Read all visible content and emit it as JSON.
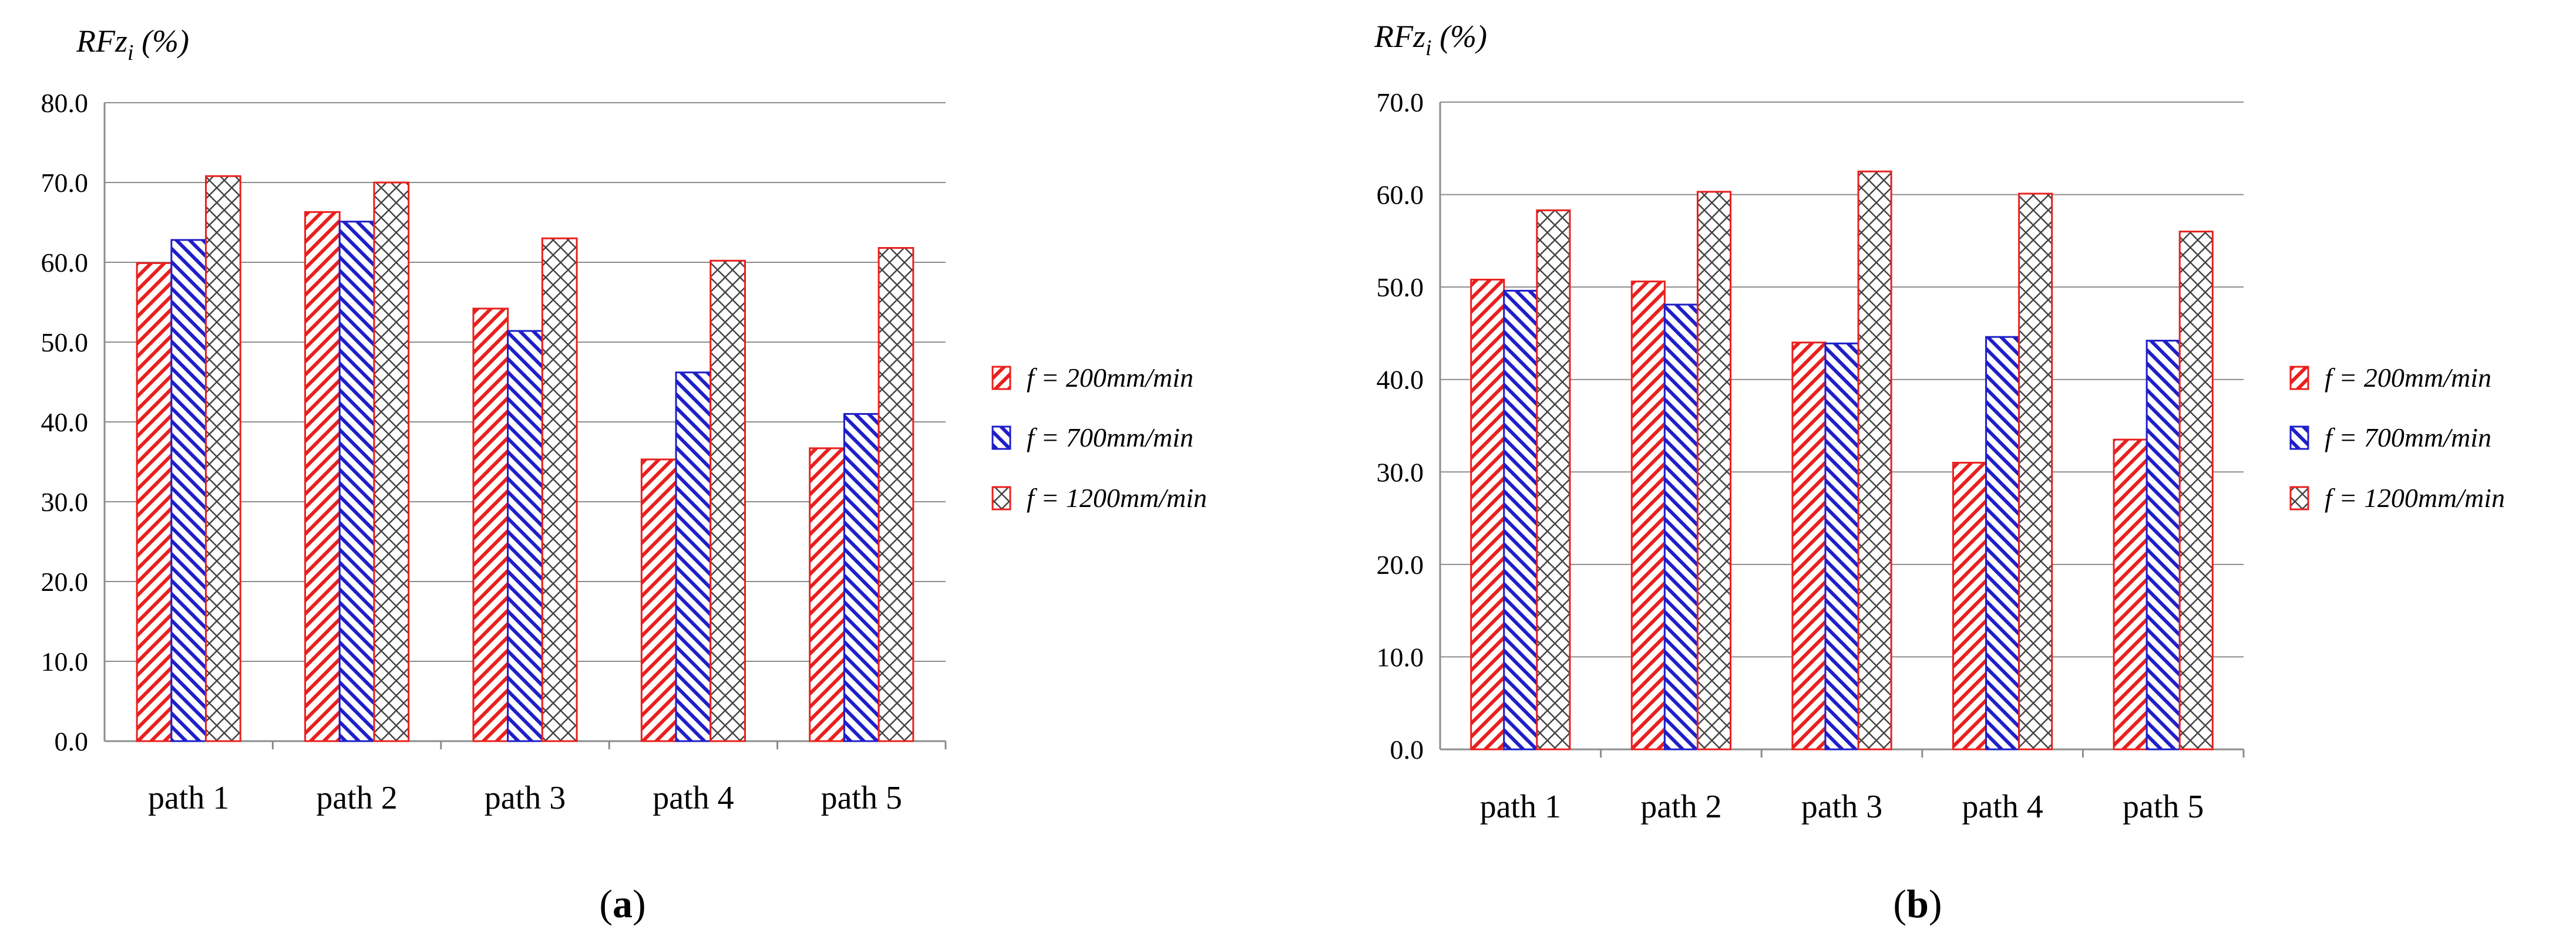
{
  "chart_data": [
    {
      "type": "bar",
      "panel_label": "a",
      "ylabel_main": "RFz",
      "ylabel_sub": "i",
      "ylabel_unit": " (%)",
      "categories": [
        "path 1",
        "path 2",
        "path 3",
        "path 4",
        "path 5"
      ],
      "ylim": [
        0,
        80
      ],
      "ytick_step": 10,
      "ytick_labels": [
        "0.0",
        "10.0",
        "20.0",
        "30.0",
        "40.0",
        "50.0",
        "60.0",
        "70.0",
        "80.0"
      ],
      "grid": true,
      "legend_position": "right",
      "series": [
        {
          "name": "f = 200mm/min",
          "values": [
            59.9,
            66.3,
            54.2,
            35.3,
            36.7
          ],
          "color": "#e8201e",
          "pattern": "diag-up"
        },
        {
          "name": "f = 700mm/min",
          "values": [
            62.8,
            65.1,
            51.4,
            46.2,
            41.0
          ],
          "color": "#1f1fc8",
          "pattern": "diag-down"
        },
        {
          "name": "f = 1200mm/min",
          "values": [
            70.8,
            70.0,
            63.0,
            60.2,
            61.8
          ],
          "color": "#e8201e",
          "pattern": "crosshatch"
        }
      ]
    },
    {
      "type": "bar",
      "panel_label": "b",
      "ylabel_main": "RFz",
      "ylabel_sub": "i",
      "ylabel_unit": " (%)",
      "categories": [
        "path 1",
        "path 2",
        "path 3",
        "path 4",
        "path 5"
      ],
      "ylim": [
        0,
        70
      ],
      "ytick_step": 10,
      "ytick_labels": [
        "0.0",
        "10.0",
        "20.0",
        "30.0",
        "40.0",
        "50.0",
        "60.0",
        "70.0"
      ],
      "grid": true,
      "legend_position": "right",
      "series": [
        {
          "name": "f = 200mm/min",
          "values": [
            50.8,
            50.6,
            44.0,
            31.0,
            33.5
          ],
          "color": "#e8201e",
          "pattern": "diag-up"
        },
        {
          "name": "f = 700mm/min",
          "values": [
            49.6,
            48.1,
            43.9,
            44.6,
            44.2
          ],
          "color": "#1f1fc8",
          "pattern": "diag-down"
        },
        {
          "name": "f = 1200mm/min",
          "values": [
            58.3,
            60.3,
            62.5,
            60.1,
            56.0
          ],
          "color": "#e8201e",
          "pattern": "crosshatch"
        }
      ]
    }
  ]
}
